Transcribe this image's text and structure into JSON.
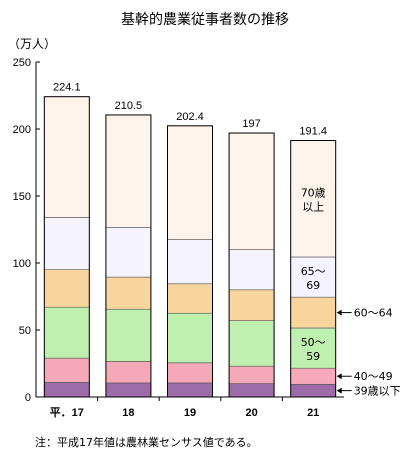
{
  "chart_data": {
    "type": "bar",
    "stacked": true,
    "title": "基幹的農業従事者数の推移",
    "ylabel": "（万人）",
    "xlabel": "",
    "ylim": [
      0,
      250
    ],
    "yticks": [
      0,
      50,
      100,
      150,
      200,
      250
    ],
    "categories": [
      "平．17",
      "18",
      "19",
      "20",
      "21"
    ],
    "totals": [
      224.1,
      210.5,
      202.4,
      197.0,
      191.4
    ],
    "series": [
      {
        "name": "39歳以下",
        "color": "#9b6ca8",
        "values": [
          11,
          10.5,
          10.5,
          10,
          9.5
        ]
      },
      {
        "name": "40〜49",
        "color": "#f5a9b8",
        "values": [
          18,
          16,
          15,
          13,
          12
        ]
      },
      {
        "name": "50〜59",
        "color": "#bff0b0",
        "values": [
          38,
          39,
          37,
          34,
          30
        ]
      },
      {
        "name": "60〜64",
        "color": "#f9d59e",
        "values": [
          28,
          24,
          22,
          23,
          23
        ]
      },
      {
        "name": "65〜69",
        "color": "#f5f3ff",
        "values": [
          39,
          37,
          33,
          30,
          30
        ]
      },
      {
        "name": "70歳以上",
        "color": "#fff4ec",
        "values": [
          90.1,
          84,
          84.9,
          87,
          86.9
        ]
      }
    ],
    "inner_labels": [
      "50〜",
      "59",
      "65〜",
      "69",
      "70歳",
      "以上"
    ],
    "side_labels": [
      "60〜64",
      "40〜49",
      "39歳以下"
    ],
    "grid": false,
    "legend": "inside-last-bar"
  },
  "footnote": "注：平成17年値は農林業センサス値である。"
}
